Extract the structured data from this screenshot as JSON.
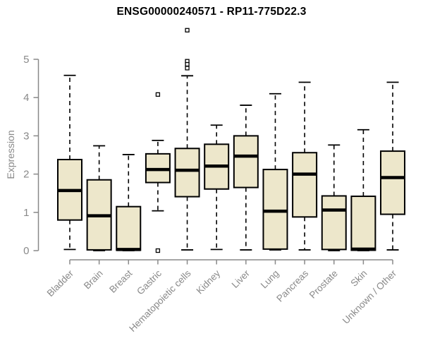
{
  "chart_data": {
    "type": "boxplot",
    "title": "ENSG00000240571 - RP11-775D22.3",
    "ylabel": "Expression",
    "xlabel": "",
    "ylim": [
      0,
      5
    ],
    "yticks": [
      0,
      1,
      2,
      3,
      4,
      5
    ],
    "grid": false,
    "legend": "none",
    "x_axis_label_rotation": 45,
    "outlier_marker": "open-square",
    "categories": [
      "Bladder",
      "Brain",
      "Breast",
      "Gastric",
      "Hematopoietic cells",
      "Kidney",
      "Liver",
      "Lung",
      "Pancreas",
      "Prostate",
      "Skin",
      "Unknown / Other"
    ],
    "boxes": [
      {
        "category": "Bladder",
        "whisker_low": 0.03,
        "q1": 0.8,
        "median": 1.57,
        "q3": 2.38,
        "whisker_high": 4.58,
        "outliers": []
      },
      {
        "category": "Brain",
        "whisker_low": 0.0,
        "q1": 0.02,
        "median": 0.91,
        "q3": 1.85,
        "whisker_high": 2.74,
        "outliers": []
      },
      {
        "category": "Breast",
        "whisker_low": 0.0,
        "q1": 0.01,
        "median": 0.03,
        "q3": 1.15,
        "whisker_high": 2.51,
        "outliers": []
      },
      {
        "category": "Gastric",
        "whisker_low": 1.04,
        "q1": 1.78,
        "median": 2.12,
        "q3": 2.53,
        "whisker_high": 2.88,
        "outliers": [
          4.08,
          0.0
        ]
      },
      {
        "category": "Hematopoietic cells",
        "whisker_low": 0.02,
        "q1": 1.41,
        "median": 2.1,
        "q3": 2.67,
        "whisker_high": 4.57,
        "outliers": [
          5.76,
          4.95,
          4.87,
          4.77
        ]
      },
      {
        "category": "Kidney",
        "whisker_low": 0.03,
        "q1": 1.61,
        "median": 2.21,
        "q3": 2.78,
        "whisker_high": 3.28,
        "outliers": []
      },
      {
        "category": "Liver",
        "whisker_low": 0.02,
        "q1": 1.65,
        "median": 2.47,
        "q3": 3.0,
        "whisker_high": 3.8,
        "outliers": []
      },
      {
        "category": "Lung",
        "whisker_low": 0.02,
        "q1": 0.04,
        "median": 1.03,
        "q3": 2.12,
        "whisker_high": 4.1,
        "outliers": []
      },
      {
        "category": "Pancreas",
        "whisker_low": 0.02,
        "q1": 0.88,
        "median": 2.0,
        "q3": 2.56,
        "whisker_high": 4.4,
        "outliers": []
      },
      {
        "category": "Prostate",
        "whisker_low": 0.0,
        "q1": 0.03,
        "median": 1.06,
        "q3": 1.43,
        "whisker_high": 2.76,
        "outliers": []
      },
      {
        "category": "Skin",
        "whisker_low": 0.0,
        "q1": 0.01,
        "median": 0.04,
        "q3": 1.42,
        "whisker_high": 3.16,
        "outliers": []
      },
      {
        "category": "Unknown / Other",
        "whisker_low": 0.02,
        "q1": 0.95,
        "median": 1.91,
        "q3": 2.6,
        "whisker_high": 4.4,
        "outliers": []
      }
    ],
    "colors": {
      "box_fill": "#EDE7CB",
      "box_border": "#000000",
      "median": "#000000",
      "whisker": "#000000",
      "axis": "#898989",
      "tick_label": "#898989",
      "title": "#000000",
      "background": "#FFFFFF"
    }
  }
}
